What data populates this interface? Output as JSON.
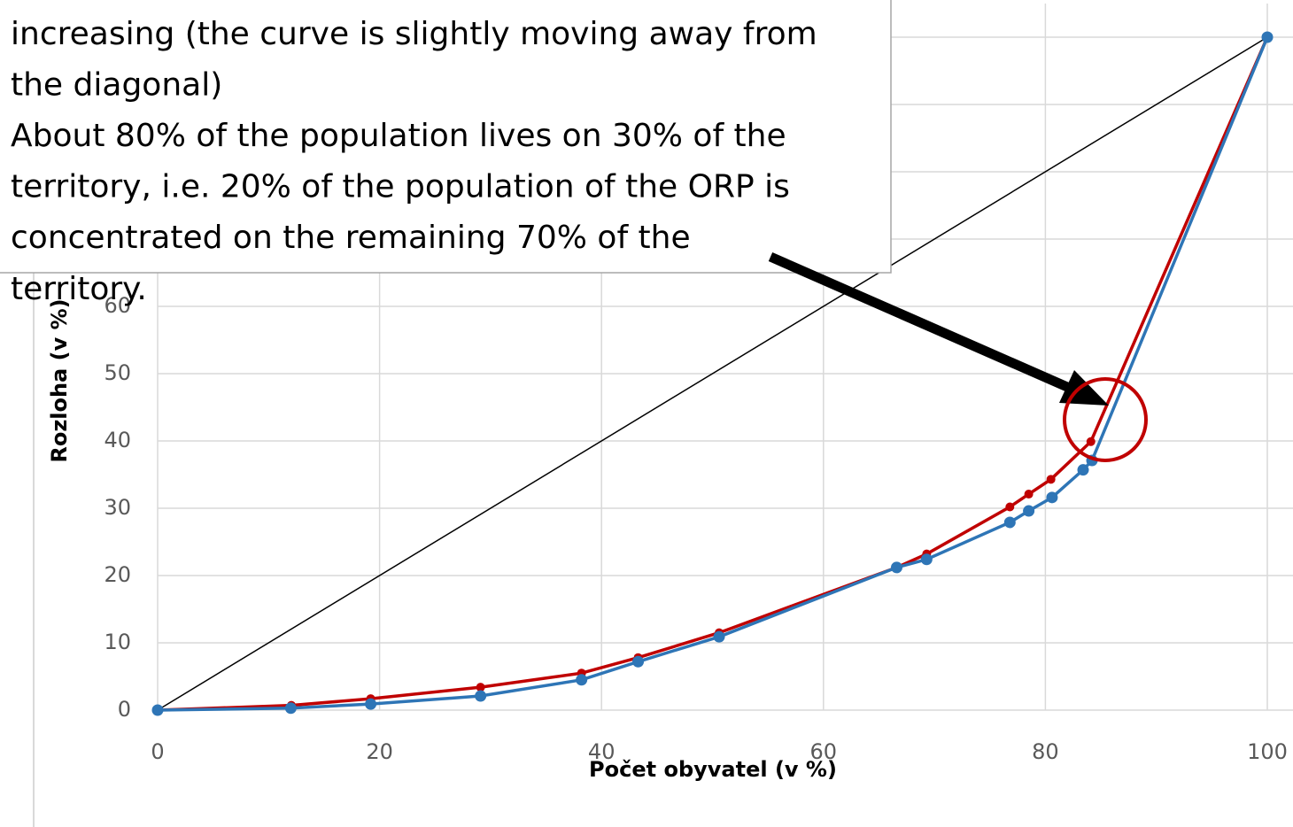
{
  "chart_data": {
    "type": "line",
    "x_label": "Počet obyvatel (v %)",
    "y_label": "Rozloha (v %)",
    "xlim": [
      0,
      100
    ],
    "ylim": [
      0,
      105
    ],
    "xticks": [
      0,
      20,
      40,
      60,
      80,
      100
    ],
    "yticks": [
      0,
      10,
      20,
      30,
      40,
      50,
      60,
      70,
      80,
      90,
      100
    ],
    "grid": true,
    "series": [
      {
        "color": "#000000",
        "x": [
          0,
          100
        ],
        "values": [
          0,
          100
        ]
      },
      {
        "color": "#c00000",
        "x": [
          0,
          12.05,
          19.2,
          29.1,
          38.2,
          43.3,
          50.6,
          66.6,
          69.3,
          76.8,
          78.5,
          80.5,
          84.1,
          100
        ],
        "values": [
          0,
          0.7,
          1.7,
          3.4,
          5.5,
          7.8,
          11.5,
          21.2,
          23.2,
          30.2,
          32.1,
          34.3,
          39.9,
          100
        ]
      },
      {
        "color": "#2e75b6",
        "x": [
          0,
          12,
          19.2,
          29.1,
          38.2,
          43.3,
          50.6,
          66.6,
          69.3,
          76.8,
          78.5,
          80.6,
          83.4,
          84.2,
          100
        ],
        "values": [
          0,
          0.3,
          0.9,
          2.1,
          4.5,
          7.2,
          10.9,
          21.2,
          22.4,
          27.9,
          29.6,
          31.6,
          35.7,
          37.1,
          100
        ]
      }
    ],
    "annotation": [
      "increasing (the curve is slightly moving away from",
      "the diagonal)",
      "About 80% of the population lives on 30% of the",
      "territory, i.e. 20% of the population of the ORP is",
      "concentrated on the remaining 70% of the",
      "territory."
    ]
  }
}
